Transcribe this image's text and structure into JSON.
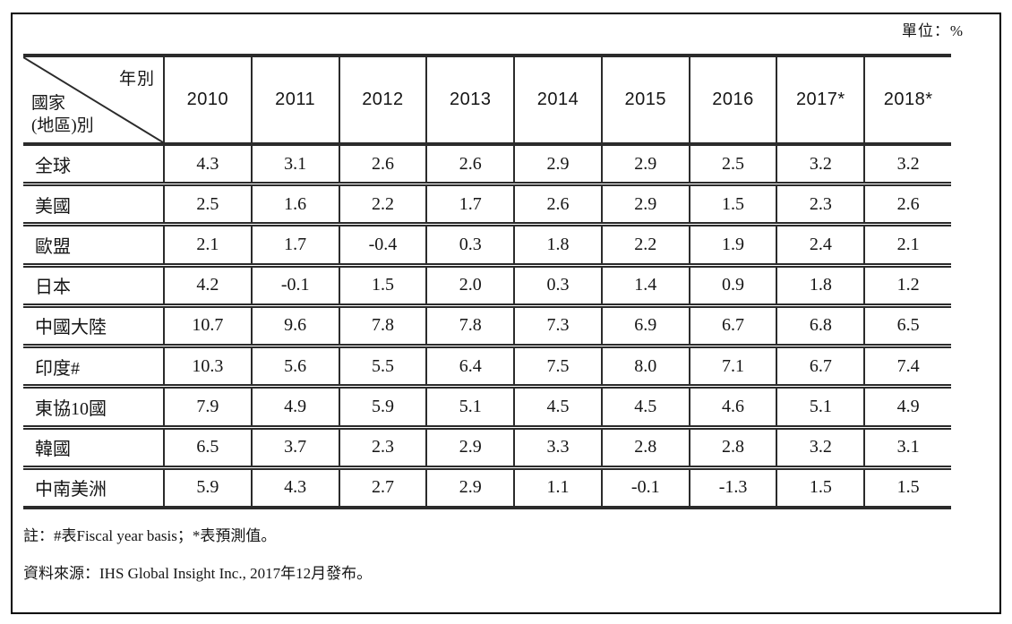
{
  "unit_label": "單位：%",
  "table": {
    "corner": {
      "year_label": "年別",
      "country_label_line1": "國家",
      "country_label_line2": "(地區)別"
    },
    "columns": [
      "2010",
      "2011",
      "2012",
      "2013",
      "2014",
      "2015",
      "2016",
      "2017*",
      "2018*"
    ],
    "rows": [
      {
        "label": "全球",
        "values": [
          "4.3",
          "3.1",
          "2.6",
          "2.6",
          "2.9",
          "2.9",
          "2.5",
          "3.2",
          "3.2"
        ]
      },
      {
        "label": "美國",
        "values": [
          "2.5",
          "1.6",
          "2.2",
          "1.7",
          "2.6",
          "2.9",
          "1.5",
          "2.3",
          "2.6"
        ]
      },
      {
        "label": "歐盟",
        "values": [
          "2.1",
          "1.7",
          "-0.4",
          "0.3",
          "1.8",
          "2.2",
          "1.9",
          "2.4",
          "2.1"
        ]
      },
      {
        "label": "日本",
        "values": [
          "4.2",
          "-0.1",
          "1.5",
          "2.0",
          "0.3",
          "1.4",
          "0.9",
          "1.8",
          "1.2"
        ]
      },
      {
        "label": "中國大陸",
        "values": [
          "10.7",
          "9.6",
          "7.8",
          "7.8",
          "7.3",
          "6.9",
          "6.7",
          "6.8",
          "6.5"
        ]
      },
      {
        "label": "印度#",
        "values": [
          "10.3",
          "5.6",
          "5.5",
          "6.4",
          "7.5",
          "8.0",
          "7.1",
          "6.7",
          "7.4"
        ]
      },
      {
        "label": "東協10國",
        "values": [
          "7.9",
          "4.9",
          "5.9",
          "5.1",
          "4.5",
          "4.5",
          "4.6",
          "5.1",
          "4.9"
        ]
      },
      {
        "label": "韓國",
        "values": [
          "6.5",
          "3.7",
          "2.3",
          "2.9",
          "3.3",
          "2.8",
          "2.8",
          "3.2",
          "3.1"
        ]
      },
      {
        "label": "中南美洲",
        "values": [
          "5.9",
          "4.3",
          "2.7",
          "2.9",
          "1.1",
          "-0.1",
          "-1.3",
          "1.5",
          "1.5"
        ]
      }
    ]
  },
  "notes": [
    "註：#表Fiscal year basis；*表預測值。",
    "資料來源：IHS Global Insight Inc., 2017年12月發布。"
  ],
  "colors": {
    "border": "#2b2b2b",
    "text": "#151515",
    "background": "#ffffff"
  }
}
